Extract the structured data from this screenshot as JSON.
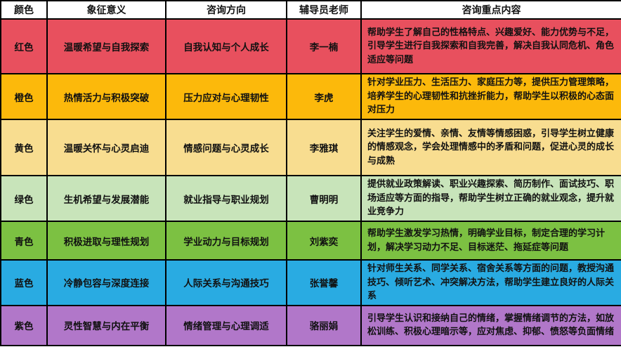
{
  "table": {
    "title_semantic": "color-counseling-assignment-table",
    "headers": [
      "颜色",
      "象征意义",
      "咨询方向",
      "辅导员老师",
      "咨询重点内容"
    ],
    "rows": [
      {
        "bg": "#E8505E",
        "color_name": "红色",
        "meaning": "温暖希望与自我探索",
        "direction": "自我认知与个人成长",
        "teacher": "李一楠",
        "content": "帮助学生了解自己的性格特点、兴趣爱好、能力优势与不足，引导学生进行自我探索和自我完善，解决自我认同危机、角色适应等问题"
      },
      {
        "bg": "#FCB90B",
        "color_name": "橙色",
        "meaning": "热情活力与积极突破",
        "direction": "压力应对与心理韧性",
        "teacher": "李虎",
        "content": "针对学业压力、生活压力、家庭压力等，提供压力管理策略，培养学生的心理韧性和抗挫折能力，帮助学生以积极的心态面对压力"
      },
      {
        "bg": "#F8DD90",
        "color_name": "黄色",
        "meaning": "温暖关怀与心灵启迪",
        "direction": "情感问题与心灵成长",
        "teacher": "李雅琪",
        "content": "关注学生的爱情、亲情、友情等情感困惑，引导学生树立健康的情感观念，学会处理情感中的矛盾和问题，促进心灵的成长与成熟"
      },
      {
        "bg": "#C8E4BA",
        "color_name": "绿色",
        "meaning": "生机希望与发展潜能",
        "direction": "就业指导与职业规划",
        "teacher": "曹明明",
        "content": "提供就业政策解读、职业兴趣探索、简历制作、面试技巧、职场适应等方面的指导，帮助学生树立正确的就业观念，提升就业竞争力"
      },
      {
        "bg": "#7CC142",
        "color_name": "青色",
        "meaning": "积极进取与理性规划",
        "direction": "学业动力与目标规划",
        "teacher": "刘紫奕",
        "content": "帮助学生激发学习热情，明确学业目标，制定合理的学习计划，解决学习动力不足、目标迷茫、拖延症等问题"
      },
      {
        "bg": "#29ABE2",
        "color_name": "蓝色",
        "meaning": "冷静包容与深度连接",
        "direction": "人际关系与沟通技巧",
        "teacher": "张誉馨",
        "content": "针对师生关系、同学关系、宿舍关系等方面的问题，教授沟通技巧、倾听艺术、冲突解决方法，帮助学生建立良好的人际关系"
      },
      {
        "bg": "#B177C9",
        "color_name": "紫色",
        "meaning": "灵性智慧与内在平衡",
        "direction": "情绪管理与心理调适",
        "teacher": "骆丽娟",
        "content": "引导学生认识和接纳自己的情绪，掌握情绪调节的方法，如放松训练、积极心理暗示等，应对焦虑、抑郁、愤怒等负面情绪"
      }
    ]
  }
}
